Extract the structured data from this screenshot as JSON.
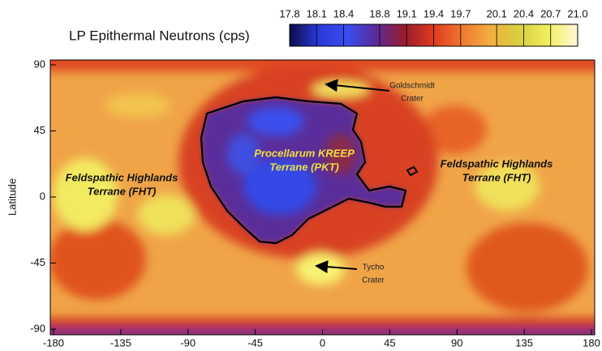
{
  "chart_data": {
    "type": "map",
    "title": "LP Epithermal Neutrons (cps)",
    "ylabel": "Latitude",
    "xlim": [
      -180,
      180
    ],
    "ylim": [
      -90,
      90
    ],
    "xticks": [
      -180,
      -135,
      -90,
      -45,
      0,
      45,
      90,
      135,
      180
    ],
    "yticks": [
      -90,
      -45,
      0,
      45,
      90
    ],
    "colorbar": {
      "ticks": [
        17.8,
        18.1,
        18.4,
        18.8,
        19.1,
        19.4,
        19.7,
        20.1,
        20.4,
        20.7,
        {
          "value": 21,
          "label": "21.0"
        }
      ],
      "colors": [
        "#0c0c4a",
        "#2a3ad8",
        "#3a4cf0",
        "#5a2a9a",
        "#9a1c2a",
        "#e03a20",
        "#f07a30",
        "#f0b040",
        "#d8d040",
        "#f2f060",
        "#fff8d8"
      ]
    },
    "region_labels": [
      {
        "lines": [
          "Feldspathic Highlands",
          "Terrane (FHT)"
        ]
      },
      {
        "lines": [
          "Procellarum KREEP",
          "Terrane (PKT)"
        ]
      },
      {
        "lines": [
          "Feldspathic Highlands",
          "Terrane (FHT)"
        ]
      }
    ],
    "annotations": [
      {
        "lines": [
          "Goldschmidt",
          "Crater"
        ]
      },
      {
        "lines": [
          "Tycho",
          "Crater"
        ]
      }
    ]
  }
}
